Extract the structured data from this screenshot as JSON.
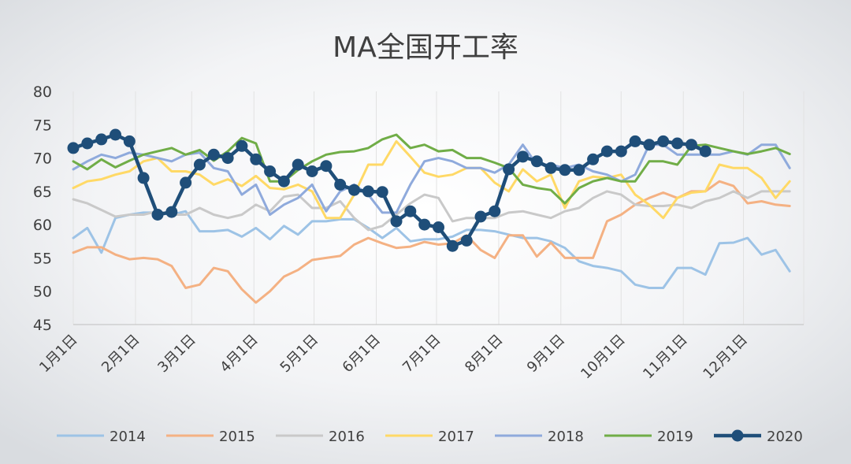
{
  "chart_data": {
    "type": "line",
    "title": "MA全国开工率",
    "xlabel": "",
    "ylabel": "",
    "ylim": [
      45,
      80
    ],
    "yticks": [
      45,
      50,
      55,
      60,
      65,
      70,
      75,
      80
    ],
    "x_domain": [
      0,
      52
    ],
    "x_ticks": [
      {
        "label": "1月1日",
        "week": 0
      },
      {
        "label": "2月1日",
        "week": 4.43
      },
      {
        "label": "3月1日",
        "week": 8.43
      },
      {
        "label": "4月1日",
        "week": 12.86
      },
      {
        "label": "5月1日",
        "week": 17.14
      },
      {
        "label": "6月1日",
        "week": 21.57
      },
      {
        "label": "7月1日",
        "week": 25.86
      },
      {
        "label": "8月1日",
        "week": 30.29
      },
      {
        "label": "9月1日",
        "week": 34.71
      },
      {
        "label": "10月1日",
        "week": 39
      },
      {
        "label": "11月1日",
        "week": 43.43
      },
      {
        "label": "12月1日",
        "week": 47.71
      }
    ],
    "grid": "vertical",
    "legend_position": "bottom",
    "series": [
      {
        "name": "2014",
        "color": "#9dc3e6",
        "marker": false,
        "values": [
          58.0,
          59.5,
          55.8,
          61.0,
          61.5,
          61.8,
          61.8,
          61.5,
          62.0,
          59.0,
          59.0,
          59.2,
          58.2,
          59.5,
          57.8,
          59.8,
          58.5,
          60.5,
          60.5,
          60.8,
          60.8,
          59.5,
          58.0,
          59.5,
          57.5,
          57.8,
          57.8,
          58.2,
          59.2,
          59.2,
          59.0,
          58.5,
          58.0,
          58.0,
          57.5,
          56.5,
          54.5,
          53.8,
          53.5,
          53.0,
          51.0,
          50.5,
          50.5,
          53.5,
          53.5,
          52.5,
          57.2,
          57.3,
          58.0,
          55.5,
          56.2,
          53.0
        ]
      },
      {
        "name": "2015",
        "color": "#f4b183",
        "marker": false,
        "values": [
          55.8,
          56.6,
          56.6,
          55.5,
          54.8,
          55.0,
          54.8,
          53.8,
          50.5,
          51.0,
          53.5,
          53.0,
          50.3,
          48.3,
          50.0,
          52.2,
          53.2,
          54.7,
          55.0,
          55.3,
          57.0,
          58.0,
          57.2,
          56.5,
          56.7,
          57.4,
          57.0,
          57.2,
          58.4,
          56.2,
          55.0,
          58.4,
          58.4,
          55.2,
          57.3,
          55.0,
          55.0,
          55.0,
          60.5,
          61.5,
          63.0,
          64.0,
          64.8,
          64.0,
          65.0,
          65.0,
          66.5,
          65.8,
          63.2,
          63.5,
          63.0,
          62.8
        ]
      },
      {
        "name": "2016",
        "color": "#c9c9c9",
        "marker": false,
        "values": [
          63.8,
          63.2,
          62.2,
          61.2,
          61.5,
          61.5,
          62.0,
          61.5,
          61.5,
          62.5,
          61.5,
          61.0,
          61.5,
          63.0,
          62.0,
          64.2,
          64.5,
          62.5,
          62.5,
          63.5,
          61.0,
          59.2,
          59.8,
          61.5,
          63.2,
          64.5,
          64.0,
          60.5,
          61.0,
          61.0,
          61.0,
          61.8,
          62.0,
          61.5,
          61.0,
          62.0,
          62.5,
          64.0,
          65.0,
          64.5,
          63.0,
          62.8,
          62.8,
          63.0,
          62.5,
          63.5,
          64.0,
          65.0,
          64.0,
          65.0,
          65.0,
          65.0
        ]
      },
      {
        "name": "2017",
        "color": "#ffd966",
        "marker": false,
        "values": [
          65.5,
          66.5,
          66.8,
          67.5,
          68.0,
          69.5,
          70.0,
          68.0,
          68.0,
          67.5,
          66.0,
          66.8,
          65.8,
          67.3,
          65.5,
          65.3,
          66.0,
          65.0,
          61.0,
          61.0,
          64.5,
          69.0,
          69.0,
          72.5,
          70.2,
          67.8,
          67.2,
          67.5,
          68.5,
          68.5,
          66.3,
          65.0,
          68.3,
          66.5,
          67.5,
          62.5,
          66.5,
          67.2,
          67.0,
          67.5,
          64.5,
          63.0,
          61.0,
          64.0,
          64.8,
          65.0,
          69.0,
          68.5,
          68.5,
          67.0,
          64.0,
          66.5
        ]
      },
      {
        "name": "2018",
        "color": "#8faadc",
        "marker": false,
        "values": [
          68.3,
          69.5,
          70.5,
          70.0,
          70.8,
          70.5,
          70.0,
          69.5,
          70.5,
          70.8,
          68.5,
          68.0,
          64.5,
          66.0,
          61.5,
          63.0,
          64.0,
          66.0,
          62.0,
          65.0,
          66.0,
          64.5,
          61.8,
          61.8,
          66.0,
          69.5,
          70.0,
          69.5,
          68.5,
          68.5,
          67.8,
          69.0,
          72.0,
          69.0,
          69.0,
          68.5,
          69.0,
          68.0,
          67.5,
          66.5,
          67.5,
          72.0,
          72.0,
          70.5,
          70.5,
          70.5,
          70.5,
          71.0,
          70.5,
          72.0,
          72.0,
          68.5
        ]
      },
      {
        "name": "2019",
        "color": "#70ad47",
        "marker": false,
        "values": [
          69.5,
          68.3,
          69.8,
          68.6,
          69.6,
          70.5,
          71.0,
          71.5,
          70.5,
          71.2,
          69.6,
          71.0,
          73.0,
          72.2,
          66.5,
          66.5,
          68.2,
          69.5,
          70.5,
          70.9,
          71.0,
          71.5,
          72.8,
          73.5,
          71.5,
          72.0,
          71.0,
          71.2,
          70.0,
          70.0,
          69.3,
          68.5,
          66.0,
          65.5,
          65.2,
          63.2,
          65.5,
          66.5,
          67.0,
          66.5,
          66.5,
          69.5,
          69.5,
          69.0,
          71.8,
          72.0,
          71.5,
          71.0,
          70.6,
          71.0,
          71.5,
          70.6
        ]
      },
      {
        "name": "2020",
        "color": "#1f4e79",
        "marker": true,
        "values": [
          71.5,
          72.2,
          72.8,
          73.5,
          72.5,
          67.0,
          61.5,
          61.9,
          66.3,
          69.0,
          70.5,
          70.0,
          71.8,
          69.8,
          68.0,
          66.5,
          69.0,
          68.0,
          68.8,
          66.0,
          65.2,
          65.0,
          64.9,
          60.5,
          62.0,
          60.0,
          59.6,
          56.8,
          57.6,
          61.2,
          62.0,
          68.3,
          70.2,
          69.5,
          68.5,
          68.2,
          68.2,
          69.8,
          71.0,
          71.0,
          72.5,
          72.0,
          72.5,
          72.2,
          72.0,
          71.0
        ]
      }
    ]
  }
}
